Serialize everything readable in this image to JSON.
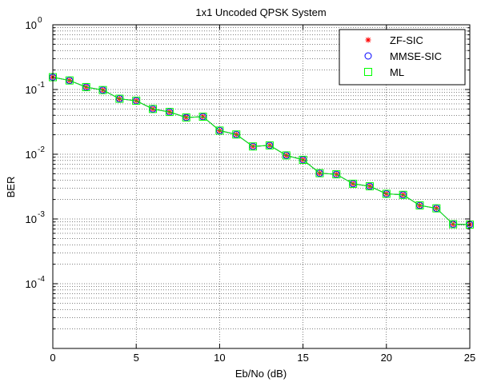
{
  "chart_data": {
    "type": "line",
    "title": "1x1 Uncoded QPSK System",
    "xlabel": "Eb/No (dB)",
    "ylabel": "BER",
    "x_scale": "linear",
    "y_scale": "log",
    "xlim": [
      0,
      25
    ],
    "ylim": [
      1e-05,
      1
    ],
    "x_ticks": [
      "0",
      "5",
      "10",
      "15",
      "20",
      "25"
    ],
    "y_ticks": [
      {
        "base": "10",
        "exp": "0",
        "value": 1
      },
      {
        "base": "10",
        "exp": "-1",
        "value": 0.1
      },
      {
        "base": "10",
        "exp": "-2",
        "value": 0.01
      },
      {
        "base": "10",
        "exp": "-3",
        "value": 0.001
      },
      {
        "base": "10",
        "exp": "-4",
        "value": 0.0001
      }
    ],
    "grid": true,
    "legend_position": "top-right",
    "x": [
      0,
      1,
      2,
      3,
      4,
      5,
      6,
      7,
      8,
      9,
      10,
      11,
      12,
      13,
      14,
      15,
      16,
      17,
      18,
      19,
      20,
      21,
      22,
      23,
      24,
      25
    ],
    "series": [
      {
        "name": "ZF-SIC",
        "marker": "asterisk",
        "color": "#ff0000",
        "values": [
          0.155,
          0.138,
          0.109,
          0.098,
          0.072,
          0.067,
          0.05,
          0.045,
          0.037,
          0.038,
          0.0232,
          0.0202,
          0.0132,
          0.0137,
          0.0096,
          0.0082,
          0.0051,
          0.0049,
          0.0035,
          0.0032,
          0.00245,
          0.00236,
          0.00162,
          0.00146,
          0.00083,
          0.00082
        ]
      },
      {
        "name": "MMSE-SIC",
        "marker": "circle",
        "color": "#0000ff",
        "values": [
          0.155,
          0.138,
          0.109,
          0.098,
          0.072,
          0.067,
          0.05,
          0.045,
          0.037,
          0.038,
          0.0232,
          0.0202,
          0.0132,
          0.0137,
          0.0096,
          0.0082,
          0.0051,
          0.0049,
          0.0035,
          0.0032,
          0.00245,
          0.00236,
          0.00162,
          0.00146,
          0.00083,
          0.00082
        ]
      },
      {
        "name": "ML",
        "marker": "square",
        "color": "#00ff00",
        "values": [
          0.155,
          0.138,
          0.109,
          0.098,
          0.072,
          0.067,
          0.05,
          0.045,
          0.037,
          0.038,
          0.0232,
          0.0202,
          0.0132,
          0.0137,
          0.0096,
          0.0082,
          0.0051,
          0.0049,
          0.0035,
          0.0032,
          0.00245,
          0.00236,
          0.00162,
          0.00146,
          0.00083,
          0.00082
        ]
      }
    ]
  }
}
